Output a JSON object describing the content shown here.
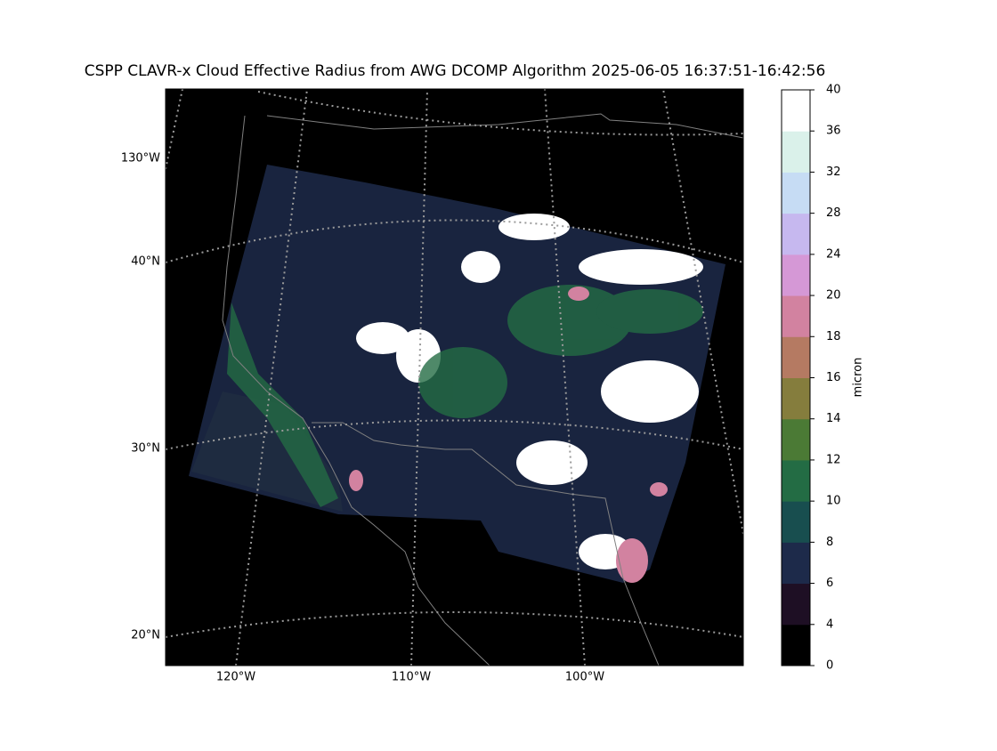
{
  "title": "CSPP CLAVR-x Cloud Effective Radius from AWG DCOMP Algorithm 2025-06-05 16:37:51-16:42:56",
  "map": {
    "lon_labels": [
      "120°W",
      "110°W",
      "100°W"
    ],
    "lat_labels": [
      "130°W",
      "40°N",
      "30°N",
      "20°N"
    ]
  },
  "colorbar": {
    "label": "micron",
    "ticks": [
      0,
      4,
      6,
      8,
      10,
      12,
      14,
      16,
      18,
      20,
      24,
      28,
      32,
      36,
      40
    ],
    "colors": [
      "#000000",
      "#1e0f24",
      "#1d2a4a",
      "#184e4f",
      "#236c44",
      "#4b7a35",
      "#857d3d",
      "#b57a62",
      "#d282a0",
      "#d598d6",
      "#c6b8ef",
      "#c6dcf4",
      "#daf1ea",
      "#ffffff"
    ]
  }
}
